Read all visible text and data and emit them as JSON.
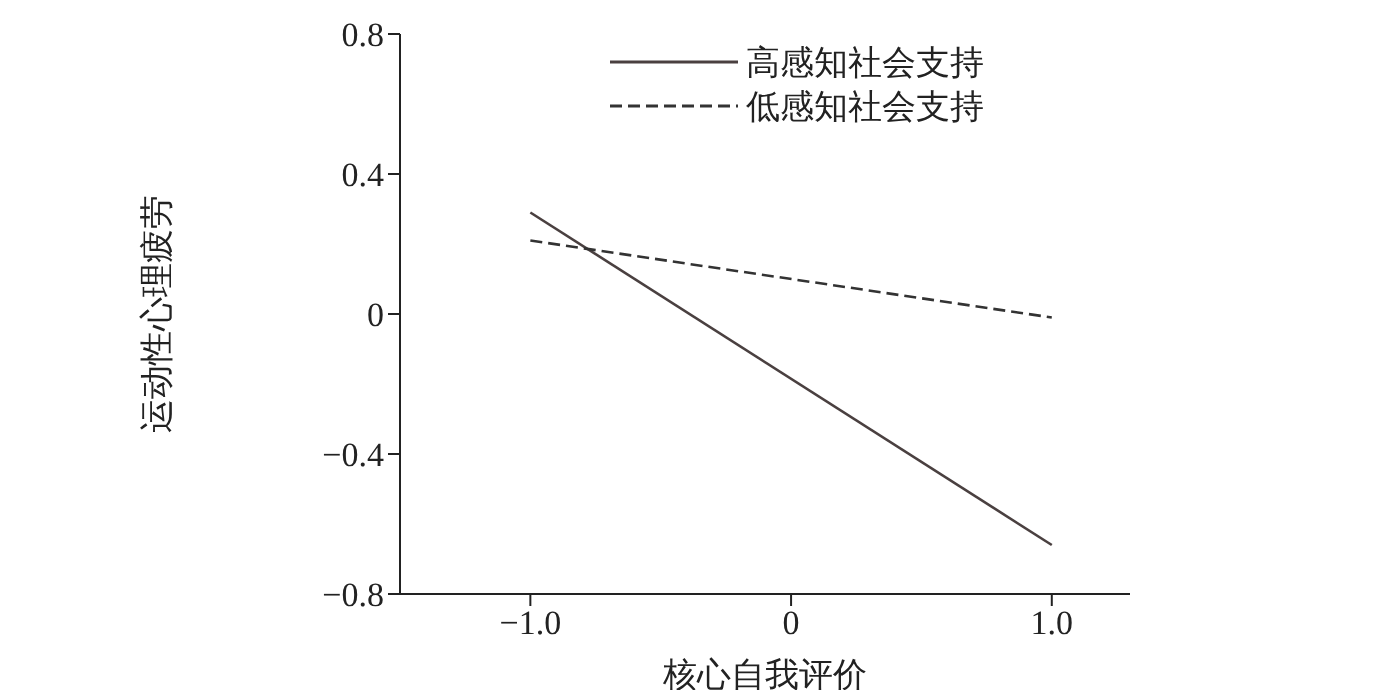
{
  "chart_data": {
    "type": "line",
    "xlabel": "核心自我评价",
    "ylabel": "运动性心理疲劳",
    "x": [
      -1.0,
      1.0
    ],
    "series": [
      {
        "name": "高感知社会支持",
        "color": "#4a4040",
        "values": [
          0.29,
          -0.66
        ],
        "line_style": "solid"
      },
      {
        "name": "低感知社会支持",
        "color": "#333333",
        "values": [
          0.21,
          -0.01
        ],
        "line_style": "dashed"
      }
    ],
    "xlim": [
      -1.5,
      1.3
    ],
    "xticks": [
      {
        "value": -1,
        "label": "−1.0"
      },
      0,
      {
        "value": 1,
        "label": "1.0"
      }
    ],
    "ylim": [
      -0.8,
      0.8
    ],
    "yticks": [
      {
        "value": -0.8,
        "label": "−0.8"
      },
      {
        "value": -0.4,
        "label": "−0.4"
      },
      0,
      0.4,
      0.8
    ],
    "grid": false,
    "legend": "top right",
    "marker": "none"
  }
}
